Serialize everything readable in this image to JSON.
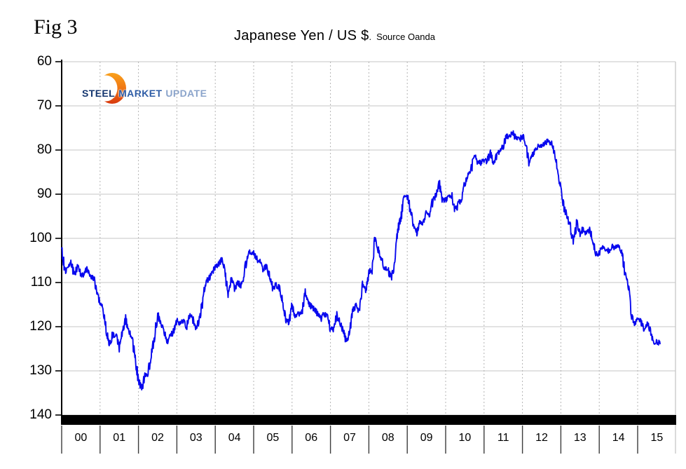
{
  "figure": {
    "label": "Fig 3"
  },
  "title": {
    "main": "Japanese Yen / US $",
    "separator": ".",
    "source": "Source Oanda"
  },
  "logo": {
    "steel": "STEEL",
    "market": "MARKET",
    "update": "UPDATE",
    "colors": {
      "steel": "#14366f",
      "market": "#2d5ca6",
      "update": "#8ba4cb",
      "crescent_top": "#F9A11C",
      "crescent_bottom": "#D8380E"
    }
  },
  "colors": {
    "line": "#0808EE",
    "grid_h": "#c6c6c6",
    "grid_v": "#b4b4b4",
    "axis": "#000000",
    "bottom_bar": "#000000",
    "separator": "#3c3c3c"
  },
  "chart_data": {
    "type": "line",
    "title": "Japanese Yen / US $",
    "source": "Source Oanda",
    "series_name": "JPY per USD",
    "line_color": "#0808EE",
    "y_axis": {
      "inverted": true,
      "range": [
        60,
        140
      ],
      "ticks": [
        60,
        70,
        80,
        90,
        100,
        110,
        120,
        130,
        140
      ],
      "grid": "solid horizontal"
    },
    "x_axis": {
      "start_year": 2000,
      "end_year": 2015,
      "tick_labels": [
        "00",
        "01",
        "02",
        "03",
        "04",
        "05",
        "06",
        "07",
        "08",
        "09",
        "10",
        "11",
        "12",
        "13",
        "14",
        "15"
      ],
      "grid": "dotted vertical at year boundaries"
    },
    "monthly": {
      "start_year": 2000,
      "start_month": 1,
      "points_per_year": 12,
      "values": [
        102.2,
        107.5,
        106.2,
        105.4,
        108.6,
        106.1,
        108.1,
        108.3,
        106.8,
        108.4,
        109.0,
        112.1,
        114.7,
        116.1,
        121.4,
        123.8,
        121.6,
        122.3,
        124.6,
        121.4,
        118.2,
        121.3,
        122.4,
        127.6,
        132.0,
        134.2,
        131.1,
        130.6,
        126.4,
        122.4,
        117.3,
        119.0,
        121.1,
        123.4,
        122.1,
        121.0,
        118.7,
        119.4,
        118.5,
        120.0,
        117.4,
        118.4,
        120.4,
        118.6,
        114.6,
        110.1,
        109.1,
        107.6,
        106.4,
        106.1,
        104.6,
        107.4,
        112.9,
        109.4,
        111.4,
        110.1,
        110.6,
        108.1,
        104.1,
        102.9,
        103.4,
        104.6,
        105.4,
        107.4,
        106.1,
        108.6,
        111.4,
        110.6,
        111.1,
        114.4,
        118.4,
        119.1,
        115.4,
        117.4,
        117.1,
        117.4,
        112.1,
        114.4,
        115.4,
        116.1,
        117.1,
        118.4,
        117.1,
        117.9,
        120.4,
        120.6,
        117.4,
        119.1,
        120.9,
        123.4,
        121.4,
        116.4,
        115.1,
        116.6,
        110.1,
        112.4,
        107.6,
        107.1,
        99.1,
        102.6,
        104.6,
        107.1,
        106.8,
        109.4,
        106.1,
        98.1,
        95.6,
        90.1,
        90.6,
        93.6,
        97.4,
        98.6,
        96.4,
        96.6,
        94.4,
        94.9,
        91.4,
        90.1,
        87.6,
        91.1,
        91.4,
        90.1,
        90.6,
        93.8,
        92.1,
        91.1,
        87.6,
        85.4,
        84.4,
        81.2,
        82.6,
        82.9,
        82.4,
        82.6,
        80.4,
        83.4,
        81.1,
        80.4,
        79.1,
        76.9,
        76.8,
        76.2,
        77.4,
        77.7,
        76.9,
        78.4,
        82.8,
        81.1,
        79.9,
        79.1,
        78.9,
        78.4,
        77.9,
        78.6,
        80.6,
        85.1,
        89.1,
        93.1,
        95.1,
        97.6,
        101.1,
        96.1,
        99.4,
        97.6,
        99.1,
        97.9,
        100.1,
        103.6,
        103.4,
        102.1,
        102.4,
        102.9,
        101.9,
        102.1,
        101.9,
        103.1,
        107.6,
        110.1,
        117.1,
        119.4,
        118.3,
        118.9,
        120.6,
        119.4,
        120.9,
        123.9,
        123.3,
        124.0
      ]
    }
  }
}
